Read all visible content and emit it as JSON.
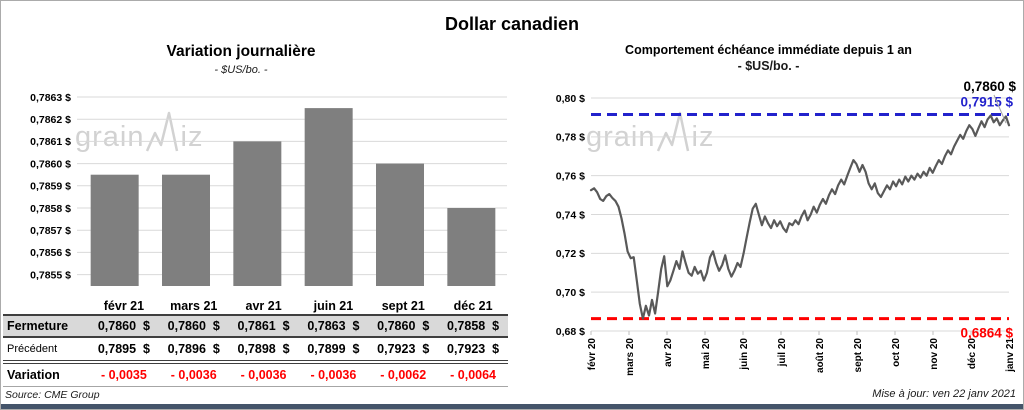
{
  "page": {
    "title": "Dollar canadien",
    "source": "Source: CME Group",
    "updated": "Mise à jour: ven 22 janv 2021"
  },
  "watermark": {
    "part1": "grain",
    "part2": "iz"
  },
  "table": {
    "columns": [
      "févr 21",
      "mars 21",
      "avr 21",
      "juin 21",
      "sept 21",
      "déc 21"
    ],
    "rows": [
      {
        "label": "Fermeture",
        "cells": [
          "0,7860  $",
          "0,7860  $",
          "0,7861  $",
          "0,7863  $",
          "0,7860  $",
          "0,7858  $"
        ]
      },
      {
        "label": "Précédent",
        "cells": [
          "0,7895  $",
          "0,7896  $",
          "0,7898  $",
          "0,7899  $",
          "0,7923  $",
          "0,7923  $"
        ]
      },
      {
        "label": "Variation",
        "cells": [
          "- 0,0035",
          "- 0,0036",
          "- 0,0036",
          "- 0,0036",
          "- 0,0062",
          "- 0,0064"
        ]
      }
    ]
  },
  "chart_data": [
    {
      "type": "bar",
      "title": "Variation journalière",
      "subtitle": "- $US/bo. -",
      "categories": [
        "févr 21",
        "mars 21",
        "avr 21",
        "juin 21",
        "sept 21",
        "déc 21"
      ],
      "values": [
        0.78595,
        0.78595,
        0.7861,
        0.78625,
        0.786,
        0.7858
      ],
      "bar_color": "#7f7f7f",
      "grid": true,
      "ylim": [
        0.7855,
        0.7863
      ],
      "yticks": [
        {
          "label": "0,7863 $",
          "value": 0.7863
        },
        {
          "label": "0,7862 $",
          "value": 0.7862
        },
        {
          "label": "0,7861 $",
          "value": 0.7861
        },
        {
          "label": "0,7860 $",
          "value": 0.786
        },
        {
          "label": "0,7859 $",
          "value": 0.7859
        },
        {
          "label": "0,7858 $",
          "value": 0.7858
        },
        {
          "label": "0,7857 $",
          "value": 0.7857
        },
        {
          "label": "0,7856 $",
          "value": 0.7856
        },
        {
          "label": "0,7855 $",
          "value": 0.7855
        }
      ]
    },
    {
      "type": "line",
      "title": "Comportement échéance immédiate depuis 1 an",
      "subtitle": "- $US/bo. -",
      "grid": true,
      "ylim": [
        0.68,
        0.8
      ],
      "yticks": [
        {
          "label": "0,80 $",
          "value": 0.8
        },
        {
          "label": "0,78 $",
          "value": 0.78
        },
        {
          "label": "0,76 $",
          "value": 0.76
        },
        {
          "label": "0,74 $",
          "value": 0.74
        },
        {
          "label": "0,72 $",
          "value": 0.72
        },
        {
          "label": "0,70 $",
          "value": 0.7
        },
        {
          "label": "0,68 $",
          "value": 0.68
        }
      ],
      "x_ticklabels": [
        "févr 20",
        "mars 20",
        "avr 20",
        "mai 20",
        "juin 20",
        "juil 20",
        "août 20",
        "sept 20",
        "oct 20",
        "nov 20",
        "déc 20",
        "janv 21"
      ],
      "series": [
        {
          "name": "échéance immédiate",
          "color": "#595959",
          "values": [
            0.7525,
            0.7535,
            0.7515,
            0.748,
            0.747,
            0.7495,
            0.7505,
            0.7485,
            0.747,
            0.744,
            0.738,
            0.73,
            0.721,
            0.7175,
            0.718,
            0.706,
            0.694,
            0.6864,
            0.693,
            0.688,
            0.696,
            0.689,
            0.7,
            0.712,
            0.7185,
            0.703,
            0.706,
            0.711,
            0.716,
            0.712,
            0.721,
            0.715,
            0.71,
            0.7085,
            0.713,
            0.7095,
            0.711,
            0.706,
            0.71,
            0.718,
            0.721,
            0.715,
            0.711,
            0.714,
            0.719,
            0.712,
            0.708,
            0.711,
            0.715,
            0.713,
            0.72,
            0.728,
            0.736,
            0.743,
            0.7455,
            0.74,
            0.7345,
            0.739,
            0.7355,
            0.733,
            0.737,
            0.734,
            0.7365,
            0.733,
            0.731,
            0.7355,
            0.7345,
            0.737,
            0.735,
            0.739,
            0.742,
            0.737,
            0.74,
            0.744,
            0.741,
            0.745,
            0.748,
            0.7455,
            0.75,
            0.753,
            0.7505,
            0.755,
            0.758,
            0.7555,
            0.76,
            0.764,
            0.768,
            0.766,
            0.762,
            0.7655,
            0.762,
            0.756,
            0.753,
            0.756,
            0.751,
            0.749,
            0.752,
            0.755,
            0.753,
            0.757,
            0.7545,
            0.758,
            0.7555,
            0.7595,
            0.757,
            0.76,
            0.758,
            0.761,
            0.759,
            0.762,
            0.76,
            0.764,
            0.7615,
            0.765,
            0.768,
            0.766,
            0.77,
            0.773,
            0.771,
            0.775,
            0.778,
            0.781,
            0.779,
            0.783,
            0.786,
            0.784,
            0.7805,
            0.7845,
            0.788,
            0.785,
            0.789,
            0.791,
            0.7875,
            0.7895,
            0.786,
            0.7885,
            0.7905,
            0.786
          ]
        }
      ],
      "hlines": [
        {
          "value": 0.7915,
          "label": "0,7915 $",
          "color": "#2222cc",
          "style": "dashed"
        },
        {
          "value": 0.6864,
          "label": "0,6864 $",
          "color": "#ff0000",
          "style": "dashed"
        }
      ],
      "end_label": {
        "text": "0,7860 $",
        "value": 0.786,
        "color": "#000000"
      },
      "legend": "none"
    }
  ]
}
